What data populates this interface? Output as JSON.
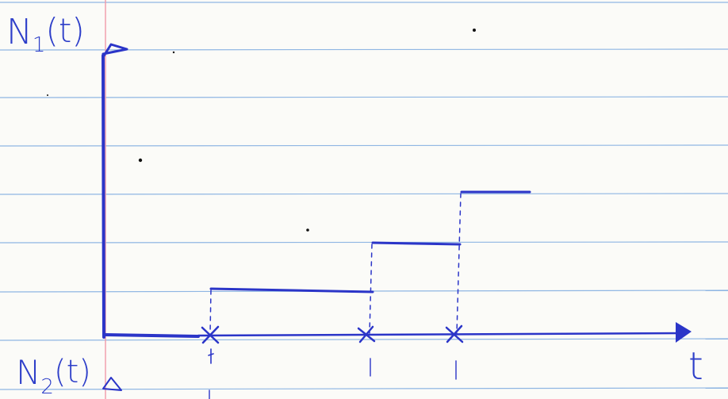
{
  "labels": {
    "n1": {
      "base": "N",
      "sub": "1",
      "arg": "(t)"
    },
    "n2": {
      "base": "N",
      "sub": "2",
      "arg": "(t)"
    },
    "time": "t"
  }
}
